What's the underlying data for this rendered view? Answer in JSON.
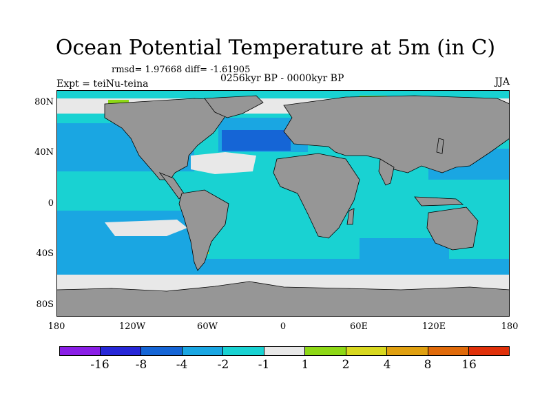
{
  "title": "Ocean Potential Temperature at 5m (in C)",
  "stats": "rmsd= 1.97668 diff= -1.61905",
  "period": "0256kyr BP - 0000kyr BP",
  "experiment": "Expt = teiNu-teina",
  "season": "JJA",
  "lat_ticks": [
    "80N",
    "40N",
    "0",
    "40S",
    "80S"
  ],
  "lon_ticks": [
    "180",
    "120W",
    "60W",
    "0",
    "60E",
    "120E",
    "180"
  ],
  "colorbar": {
    "colors": [
      "#8a1ee6",
      "#2727d8",
      "#1565d6",
      "#1aa6e2",
      "#19d2d2",
      "#e8e8e8",
      "#8ed816",
      "#d8d820",
      "#e0a010",
      "#e06a0a",
      "#e0300a"
    ],
    "labels": [
      "-16",
      "-8",
      "-4",
      "-2",
      "-1",
      "1",
      "2",
      "4",
      "8",
      "16"
    ]
  },
  "map_colors": {
    "land": "#969696",
    "cyan": "#19d2d2",
    "light_blue": "#1aa6e2",
    "blue": "#1565d6",
    "white": "#e8e8e8",
    "green": "#8ed816",
    "yellow": "#d8d820"
  }
}
